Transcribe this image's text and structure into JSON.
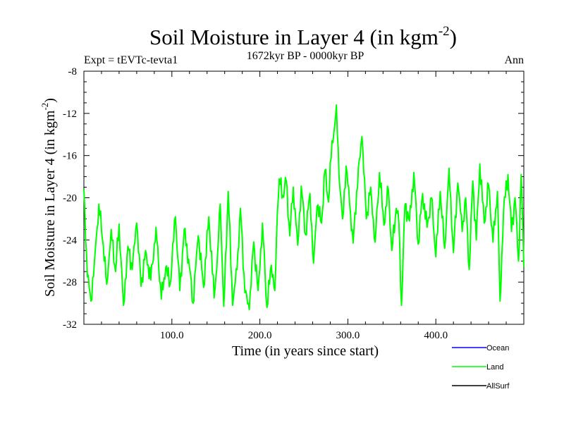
{
  "chart_data": {
    "type": "line",
    "title": "Soil Moisture in Layer 4 (in kgm",
    "title_sup": "-2",
    "title_close": ")",
    "subtitle": "1672kyr BP - 0000kyr BP",
    "expt_label": "Expt = tEVTc-tevta1",
    "season_label": "Ann",
    "xlabel": "Time (in years since start)",
    "ylabel": "Soil Moisture in Layer 4 (in kgm",
    "ylabel_sup": "-2",
    "ylabel_close": ")",
    "xlim": [
      0,
      500
    ],
    "ylim": [
      -32,
      -8
    ],
    "x_ticks": [
      100,
      200,
      300,
      400
    ],
    "x_tick_labels": [
      "100.0",
      "200.0",
      "300.0",
      "400.0"
    ],
    "y_ticks": [
      -32,
      -28,
      -24,
      -20,
      -16,
      -12,
      -8
    ],
    "y_tick_labels": [
      "-32",
      "-28",
      "-24",
      "-20",
      "-16",
      "-12",
      "-8"
    ],
    "legend": [
      {
        "name": "Ocean",
        "color": "#0000ff"
      },
      {
        "name": "Land",
        "color": "#00ff00"
      },
      {
        "name": "AllSurf",
        "color": "#000000"
      }
    ],
    "series": [
      {
        "name": "Land",
        "color": "#00ff00",
        "keypoints": [
          [
            0,
            -19.2
          ],
          [
            4,
            -27.5
          ],
          [
            8,
            -29.8
          ],
          [
            12,
            -26.0
          ],
          [
            17,
            -20.6
          ],
          [
            22,
            -24.5
          ],
          [
            26,
            -28.2
          ],
          [
            31,
            -23.0
          ],
          [
            36,
            -27.0
          ],
          [
            40,
            -22.5
          ],
          [
            45,
            -30.2
          ],
          [
            50,
            -24.6
          ],
          [
            55,
            -26.8
          ],
          [
            60,
            -22.4
          ],
          [
            65,
            -28.4
          ],
          [
            70,
            -25.0
          ],
          [
            76,
            -27.8
          ],
          [
            82,
            -22.8
          ],
          [
            88,
            -29.6
          ],
          [
            93,
            -26.6
          ],
          [
            98,
            -28.2
          ],
          [
            104,
            -21.8
          ],
          [
            109,
            -28.8
          ],
          [
            114,
            -23.0
          ],
          [
            119,
            -25.8
          ],
          [
            124,
            -30.0
          ],
          [
            130,
            -23.6
          ],
          [
            136,
            -28.5
          ],
          [
            142,
            -21.8
          ],
          [
            148,
            -29.5
          ],
          [
            152,
            -25.2
          ],
          [
            155,
            -20.6
          ],
          [
            159,
            -30.3
          ],
          [
            164,
            -19.4
          ],
          [
            169,
            -30.2
          ],
          [
            174,
            -26.8
          ],
          [
            178,
            -21.0
          ],
          [
            183,
            -29.0
          ],
          [
            188,
            -30.6
          ],
          [
            193,
            -24.2
          ],
          [
            198,
            -28.8
          ],
          [
            203,
            -22.4
          ],
          [
            208,
            -30.4
          ],
          [
            213,
            -26.4
          ],
          [
            217,
            -28.8
          ],
          [
            220,
            -21.2
          ],
          [
            222,
            -18.2
          ],
          [
            226,
            -19.8
          ],
          [
            230,
            -18.4
          ],
          [
            234,
            -23.6
          ],
          [
            238,
            -19.0
          ],
          [
            243,
            -24.5
          ],
          [
            247,
            -18.9
          ],
          [
            252,
            -23.5
          ],
          [
            257,
            -19.6
          ],
          [
            261,
            -26.2
          ],
          [
            265,
            -20.8
          ],
          [
            270,
            -22.4
          ],
          [
            274,
            -17.4
          ],
          [
            278,
            -20.4
          ],
          [
            282,
            -14.6
          ],
          [
            285,
            -13.2
          ],
          [
            287,
            -11.2
          ],
          [
            290,
            -18.0
          ],
          [
            294,
            -22.0
          ],
          [
            298,
            -17.0
          ],
          [
            302,
            -20.6
          ],
          [
            306,
            -24.3
          ],
          [
            310,
            -19.4
          ],
          [
            316,
            -14.2
          ],
          [
            321,
            -22.0
          ],
          [
            326,
            -19.0
          ],
          [
            331,
            -24.2
          ],
          [
            336,
            -17.6
          ],
          [
            341,
            -22.6
          ],
          [
            346,
            -19.2
          ],
          [
            350,
            -25.0
          ],
          [
            355,
            -21.0
          ],
          [
            358,
            -22.4
          ],
          [
            361,
            -30.2
          ],
          [
            365,
            -20.6
          ],
          [
            370,
            -22.2
          ],
          [
            375,
            -17.6
          ],
          [
            380,
            -24.4
          ],
          [
            385,
            -19.6
          ],
          [
            390,
            -22.8
          ],
          [
            395,
            -20.0
          ],
          [
            400,
            -25.6
          ],
          [
            405,
            -19.4
          ],
          [
            410,
            -24.8
          ],
          [
            415,
            -17.2
          ],
          [
            420,
            -25.2
          ],
          [
            425,
            -18.6
          ],
          [
            430,
            -23.2
          ],
          [
            434,
            -20.0
          ],
          [
            438,
            -26.8
          ],
          [
            442,
            -18.4
          ],
          [
            446,
            -24.0
          ],
          [
            450,
            -16.8
          ],
          [
            455,
            -22.4
          ],
          [
            460,
            -18.8
          ],
          [
            465,
            -24.2
          ],
          [
            470,
            -19.4
          ],
          [
            473,
            -29.8
          ],
          [
            477,
            -21.2
          ],
          [
            482,
            -17.8
          ],
          [
            486,
            -23.2
          ],
          [
            490,
            -20.0
          ],
          [
            494,
            -26.0
          ],
          [
            497,
            -17.8
          ],
          [
            500,
            -26.6
          ]
        ]
      }
    ]
  }
}
